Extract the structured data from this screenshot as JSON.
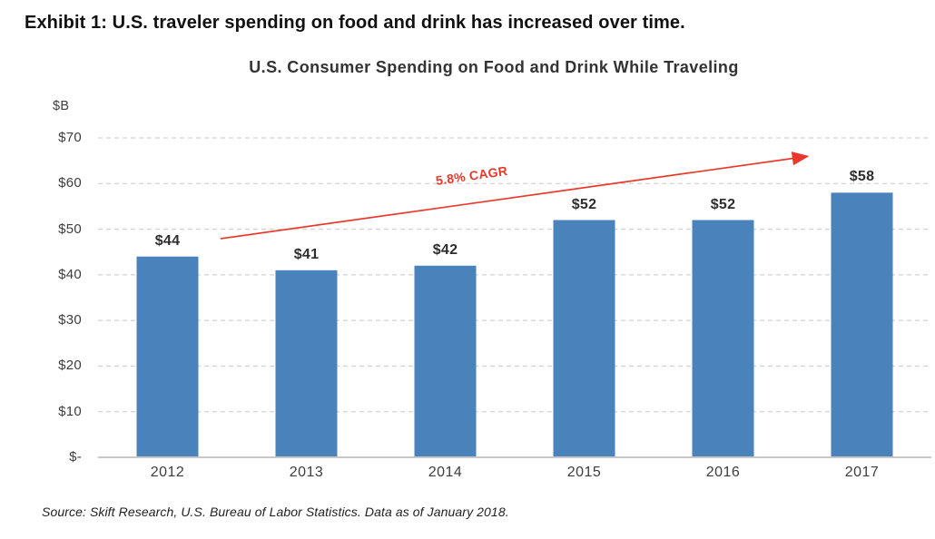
{
  "exhibit_title": "Exhibit 1: U.S. traveler spending on food and drink has increased over time.",
  "source_note": "Source: Skift Research, U.S. Bureau of Labor Statistics. Data as of January 2018.",
  "chart_data": {
    "type": "bar",
    "title": "U.S. Consumer Spending on Food and Drink While Traveling",
    "categories": [
      "2012",
      "2013",
      "2014",
      "2015",
      "2016",
      "2017"
    ],
    "values": [
      44,
      41,
      42,
      52,
      52,
      58
    ],
    "value_labels": [
      "$44",
      "$41",
      "$42",
      "$52",
      "$52",
      "$58"
    ],
    "xlabel": "",
    "ylabel": "$B",
    "ylim": [
      0,
      70
    ],
    "ytick_step": 10,
    "ytick_labels": [
      "$-",
      "$10",
      "$20",
      "$30",
      "$40",
      "$50",
      "$60",
      "$70"
    ],
    "grid": "horizontal-dashed",
    "legend": "none",
    "bar_color": "#4a82bc",
    "annotation": {
      "text": "5.8% CAGR",
      "type": "trend-arrow",
      "color": "#e8392b"
    }
  }
}
